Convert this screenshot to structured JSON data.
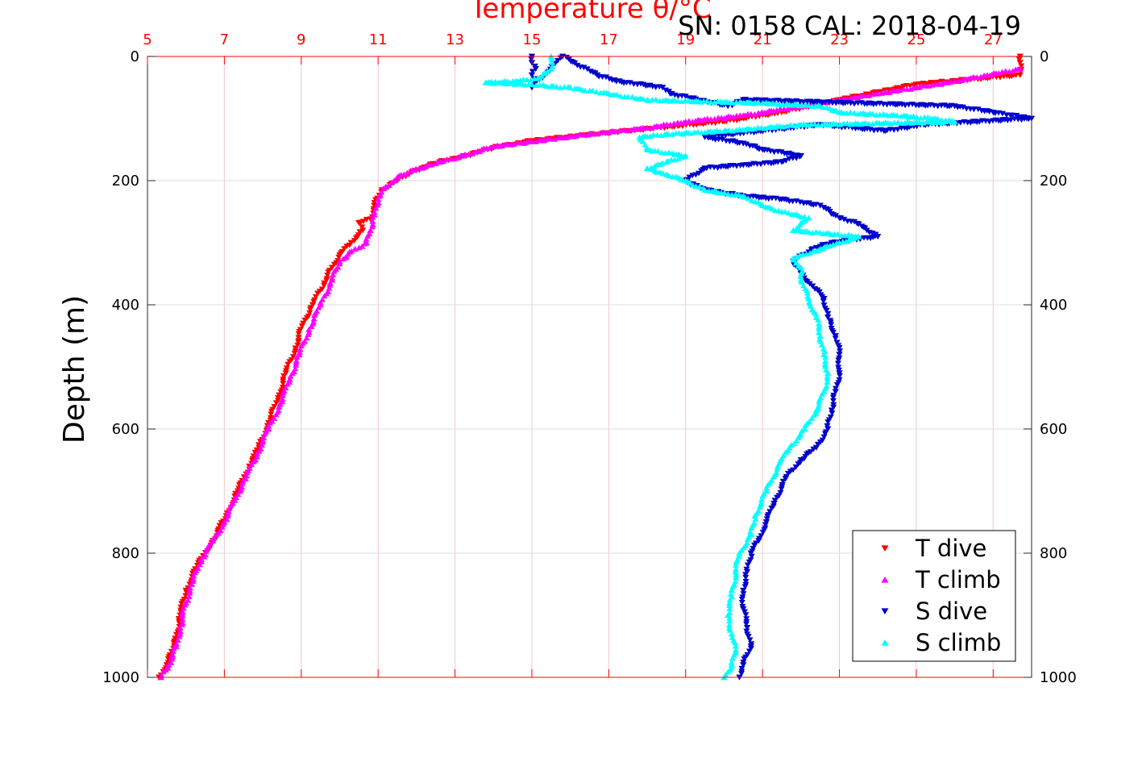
{
  "chart_data": {
    "type": "scatter",
    "title": "SN: 0158  CAL: 2018-04-19",
    "xlabel_top": "Temperature θ/°C",
    "ylabel": "Depth (m)",
    "x_axis_top": {
      "lim": [
        5,
        28
      ],
      "ticks": [
        5,
        7,
        9,
        11,
        13,
        15,
        17,
        19,
        21,
        23,
        25,
        27
      ],
      "color": "#ff0000"
    },
    "y_axis": {
      "lim": [
        0,
        1000
      ],
      "reversed": true,
      "ticks": [
        0,
        200,
        400,
        600,
        800,
        1000
      ]
    },
    "grid": true,
    "legend_position": "bottom-right",
    "series": [
      {
        "name": "T dive",
        "color": "#ff0000",
        "marker": "triangle-down",
        "points": [
          [
            27.7,
            0
          ],
          [
            27.7,
            10
          ],
          [
            27.7,
            30
          ],
          [
            25,
            45
          ],
          [
            23,
            70
          ],
          [
            21.5,
            90
          ],
          [
            20,
            105
          ],
          [
            18.8,
            112
          ],
          [
            17.5,
            120
          ],
          [
            16.2,
            128
          ],
          [
            15,
            136
          ],
          [
            14,
            147
          ],
          [
            13.3,
            160
          ],
          [
            12.6,
            170
          ],
          [
            11.9,
            185
          ],
          [
            11.5,
            200
          ],
          [
            11.1,
            215
          ],
          [
            10.9,
            240
          ],
          [
            10.8,
            262
          ],
          [
            10.5,
            268
          ],
          [
            10.6,
            280
          ],
          [
            10.3,
            300
          ],
          [
            10.0,
            320
          ],
          [
            9.8,
            340
          ],
          [
            9.6,
            365
          ],
          [
            9.3,
            400
          ],
          [
            9.05,
            430
          ],
          [
            8.85,
            470
          ],
          [
            8.6,
            510
          ],
          [
            8.4,
            550
          ],
          [
            8.15,
            590
          ],
          [
            7.9,
            630
          ],
          [
            7.65,
            660
          ],
          [
            7.35,
            700
          ],
          [
            7.05,
            740
          ],
          [
            6.7,
            780
          ],
          [
            6.3,
            820
          ],
          [
            6.0,
            860
          ],
          [
            5.85,
            900
          ],
          [
            5.7,
            950
          ],
          [
            5.5,
            980
          ],
          [
            5.3,
            1000
          ]
        ]
      },
      {
        "name": "T climb",
        "color": "#ff00ff",
        "marker": "triangle-up",
        "points": [
          [
            27.7,
            20
          ],
          [
            26,
            40
          ],
          [
            24,
            60
          ],
          [
            22,
            80
          ],
          [
            20.5,
            95
          ],
          [
            19,
            105
          ],
          [
            18,
            115
          ],
          [
            16.5,
            125
          ],
          [
            15,
            137
          ],
          [
            14,
            145
          ],
          [
            13.2,
            160
          ],
          [
            12.5,
            172
          ],
          [
            11.9,
            183
          ],
          [
            11.5,
            195
          ],
          [
            11.2,
            210
          ],
          [
            11.0,
            230
          ],
          [
            10.9,
            255
          ],
          [
            10.8,
            280
          ],
          [
            10.7,
            300
          ],
          [
            10.4,
            310
          ],
          [
            10.0,
            330
          ],
          [
            9.8,
            360
          ],
          [
            9.5,
            400
          ],
          [
            9.2,
            440
          ],
          [
            8.95,
            480
          ],
          [
            8.7,
            520
          ],
          [
            8.45,
            560
          ],
          [
            8.15,
            600
          ],
          [
            7.85,
            640
          ],
          [
            7.55,
            680
          ],
          [
            7.3,
            710
          ],
          [
            7.0,
            750
          ],
          [
            6.7,
            780
          ],
          [
            6.4,
            810
          ],
          [
            6.15,
            850
          ],
          [
            6.0,
            880
          ],
          [
            5.85,
            920
          ],
          [
            5.75,
            950
          ],
          [
            5.55,
            980
          ],
          [
            5.35,
            1000
          ]
        ]
      },
      {
        "name": "S dive",
        "color": "#0000cc",
        "marker": "triangle-down",
        "points": [
          [
            15.0,
            0
          ],
          [
            15.0,
            10
          ],
          [
            15.1,
            20
          ],
          [
            15.0,
            30
          ],
          [
            15.1,
            40
          ],
          [
            15.0,
            50
          ],
          [
            15.8,
            0
          ],
          [
            16.7,
            30
          ],
          [
            17.2,
            40
          ],
          [
            18.4,
            50
          ],
          [
            18.6,
            60
          ],
          [
            20.1,
            80
          ],
          [
            20.5,
            70
          ],
          [
            26.0,
            80
          ],
          [
            26.5,
            85
          ],
          [
            27.0,
            90
          ],
          [
            27.5,
            95
          ],
          [
            28.0,
            100
          ],
          [
            25.2,
            110
          ],
          [
            24.2,
            120
          ],
          [
            22.5,
            110
          ],
          [
            19.5,
            130
          ],
          [
            20.5,
            140
          ],
          [
            21,
            150
          ],
          [
            22,
            160
          ],
          [
            21.5,
            170
          ],
          [
            20.5,
            175
          ],
          [
            19.5,
            180
          ],
          [
            19.0,
            200
          ],
          [
            19.5,
            215
          ],
          [
            20.5,
            225
          ],
          [
            21.5,
            230
          ],
          [
            22.5,
            240
          ],
          [
            23.0,
            260
          ],
          [
            23.5,
            270
          ],
          [
            24.0,
            290
          ],
          [
            22.8,
            300
          ],
          [
            22.3,
            310
          ],
          [
            21.8,
            330
          ],
          [
            22.0,
            350
          ],
          [
            22.3,
            370
          ],
          [
            22.6,
            390
          ],
          [
            22.7,
            420
          ],
          [
            22.9,
            450
          ],
          [
            23.0,
            480
          ],
          [
            23.0,
            510
          ],
          [
            22.9,
            540
          ],
          [
            22.8,
            570
          ],
          [
            22.7,
            600
          ],
          [
            22.4,
            630
          ],
          [
            22.0,
            650
          ],
          [
            21.6,
            680
          ],
          [
            21.3,
            720
          ],
          [
            21.1,
            750
          ],
          [
            20.9,
            780
          ],
          [
            20.7,
            800
          ],
          [
            20.6,
            830
          ],
          [
            20.5,
            860
          ],
          [
            20.5,
            890
          ],
          [
            20.6,
            920
          ],
          [
            20.7,
            950
          ],
          [
            20.5,
            980
          ],
          [
            20.4,
            1000
          ]
        ]
      },
      {
        "name": "S climb",
        "color": "#00ffff",
        "marker": "triangle-up",
        "points": [
          [
            15.5,
            0
          ],
          [
            15.5,
            20
          ],
          [
            15.2,
            35
          ],
          [
            14.5,
            40
          ],
          [
            13.8,
            42
          ],
          [
            15.0,
            45
          ],
          [
            15.5,
            48
          ],
          [
            16.0,
            50
          ],
          [
            16.5,
            55
          ],
          [
            17.0,
            60
          ],
          [
            17.5,
            65
          ],
          [
            18.0,
            70
          ],
          [
            21.0,
            75
          ],
          [
            22.5,
            80
          ],
          [
            23.0,
            90
          ],
          [
            24.5,
            95
          ],
          [
            25.5,
            100
          ],
          [
            26.0,
            105
          ],
          [
            22.0,
            110
          ],
          [
            20.0,
            120
          ],
          [
            18.5,
            125
          ],
          [
            17.8,
            130
          ],
          [
            18.0,
            150
          ],
          [
            19.0,
            160
          ],
          [
            18.5,
            170
          ],
          [
            18.0,
            180
          ],
          [
            18.5,
            190
          ],
          [
            19.0,
            200
          ],
          [
            19.5,
            215
          ],
          [
            20.5,
            225
          ],
          [
            21.0,
            240
          ],
          [
            21.5,
            250
          ],
          [
            22.2,
            260
          ],
          [
            21.8,
            280
          ],
          [
            23.5,
            290
          ],
          [
            23.0,
            300
          ],
          [
            22.5,
            310
          ],
          [
            21.8,
            325
          ],
          [
            22.0,
            340
          ],
          [
            22.0,
            360
          ],
          [
            22.2,
            390
          ],
          [
            22.4,
            420
          ],
          [
            22.5,
            450
          ],
          [
            22.6,
            480
          ],
          [
            22.7,
            510
          ],
          [
            22.6,
            540
          ],
          [
            22.4,
            570
          ],
          [
            22.1,
            600
          ],
          [
            21.7,
            630
          ],
          [
            21.4,
            660
          ],
          [
            21.1,
            700
          ],
          [
            20.8,
            740
          ],
          [
            20.7,
            770
          ],
          [
            20.4,
            800
          ],
          [
            20.3,
            830
          ],
          [
            20.2,
            870
          ],
          [
            20.1,
            900
          ],
          [
            20.2,
            930
          ],
          [
            20.3,
            960
          ],
          [
            20.2,
            980
          ],
          [
            20.0,
            1000
          ]
        ]
      }
    ]
  }
}
